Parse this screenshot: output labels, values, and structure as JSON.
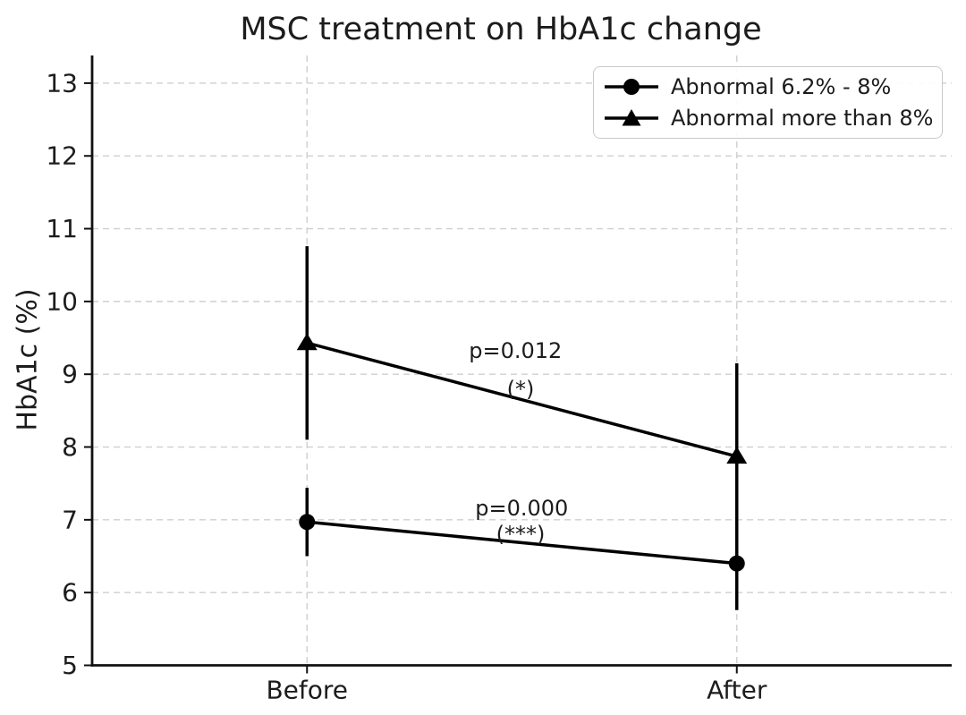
{
  "chart_data": {
    "type": "line",
    "title": "MSC treatment on HbA1c change",
    "ylabel": "HbA1c (%)",
    "xlabel": "",
    "categories": [
      "Before",
      "After"
    ],
    "series": [
      {
        "name": "Abnormal 6.2% - 8%",
        "marker": "circle",
        "values": [
          6.97,
          6.4
        ],
        "errors": [
          0.47,
          0.64
        ]
      },
      {
        "name": "Abnormal more than 8%",
        "marker": "triangle",
        "values": [
          9.43,
          7.87
        ],
        "errors": [
          1.33,
          1.28
        ]
      }
    ],
    "annotations": [
      {
        "text": "p=0.012",
        "x": 0.485,
        "y": 9.32
      },
      {
        "text": "(*)",
        "x": 0.497,
        "y": 8.79
      },
      {
        "text": "p=0.000",
        "x": 0.4995,
        "y": 7.16
      },
      {
        "text": "(***)",
        "x": 0.497,
        "y": 6.8
      }
    ],
    "axis": {
      "ylim": [
        5,
        13.38
      ],
      "xlim": [
        -0.5,
        1.5
      ],
      "yticks": [
        5,
        6,
        7,
        8,
        9,
        10,
        11,
        12,
        13
      ],
      "grid": true,
      "legend_position": "upper right"
    },
    "colors": {
      "line": "#000000",
      "grid": "#cfcfcf",
      "text": "#1c1c1c",
      "spine": "#111111",
      "background": "#ffffff",
      "legend_border": "#c9c9c9"
    }
  }
}
